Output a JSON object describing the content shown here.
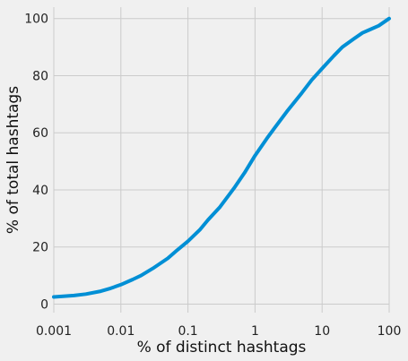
{
  "chart_data": {
    "type": "line",
    "title": "",
    "xlabel": "% of distinct hashtags",
    "ylabel": "% of total hashtags",
    "x_scale": "log",
    "xlim": [
      0.001,
      100
    ],
    "ylim": [
      -3,
      104
    ],
    "x_ticks": [
      0.001,
      0.01,
      0.1,
      1,
      10,
      100
    ],
    "x_tick_labels": [
      "0.001",
      "0.01",
      "0.1",
      "1",
      "10",
      "100"
    ],
    "y_ticks": [
      0,
      20,
      40,
      60,
      80,
      100
    ],
    "y_tick_labels": [
      "0",
      "20",
      "40",
      "60",
      "80",
      "100"
    ],
    "grid": true,
    "background_color": "#f0f0f0",
    "grid_color": "#cbcbcb",
    "series": [
      {
        "color": "#008fd5",
        "x": [
          0.001,
          0.002,
          0.003,
          0.005,
          0.007,
          0.01,
          0.015,
          0.02,
          0.03,
          0.05,
          0.07,
          0.1,
          0.15,
          0.2,
          0.3,
          0.5,
          0.7,
          1,
          1.5,
          2,
          3,
          5,
          7,
          10,
          15,
          20,
          30,
          40,
          50,
          70,
          100
        ],
        "y": [
          2.5,
          3.0,
          3.5,
          4.5,
          5.5,
          6.8,
          8.6,
          10.0,
          12.5,
          16.0,
          19.0,
          22.0,
          26.0,
          29.5,
          34.0,
          41.0,
          46.0,
          52.0,
          58.0,
          62.0,
          67.5,
          74.0,
          78.5,
          82.5,
          87.0,
          90.0,
          93.0,
          95.0,
          96.0,
          97.5,
          100.0
        ]
      }
    ]
  }
}
